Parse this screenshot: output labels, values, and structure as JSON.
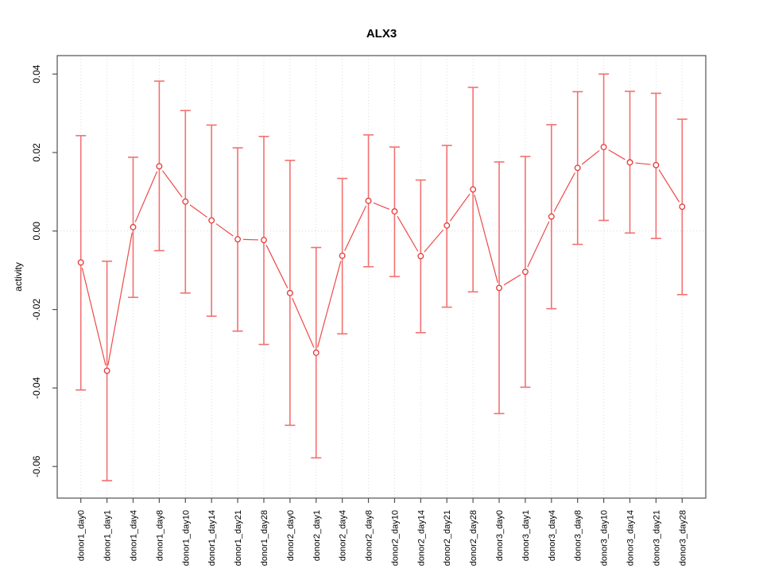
{
  "chart_data": {
    "type": "line",
    "title": "ALX3",
    "xlabel": "",
    "ylabel": "activity",
    "legend": "none",
    "grid": "dotted vertical gridline at every category; dotted horizontal line at y=0",
    "ylim": [
      -0.068,
      0.0447
    ],
    "yticks": [
      0.04,
      0.02,
      0.0,
      -0.02,
      -0.04,
      -0.06
    ],
    "ytick_labels": [
      "0.04",
      "0.02",
      "0.00",
      "-0.02",
      "-0.04",
      "-0.06"
    ],
    "categories": [
      "donor1_day0",
      "donor1_day1",
      "donor1_day4",
      "donor1_day8",
      "donor1_day10",
      "donor1_day14",
      "donor1_day21",
      "donor1_day28",
      "donor2_day0",
      "donor2_day1",
      "donor2_day4",
      "donor2_day8",
      "donor2_day10",
      "donor2_day14",
      "donor2_day21",
      "donor2_day28",
      "donor3_day0",
      "donor3_day1",
      "donor3_day4",
      "donor3_day8",
      "donor3_day10",
      "donor3_day14",
      "donor3_day21",
      "donor3_day28"
    ],
    "series": [
      {
        "name": "activity",
        "marker": "open-circle",
        "values": [
          -0.008,
          -0.0356,
          0.001,
          0.0165,
          0.0075,
          0.0027,
          -0.0021,
          -0.0023,
          -0.0158,
          -0.031,
          -0.0063,
          0.0077,
          0.005,
          -0.0064,
          0.0014,
          0.0106,
          -0.0145,
          -0.0104,
          0.0037,
          0.0161,
          0.0214,
          0.0175,
          0.0168,
          0.0062
        ],
        "error_upper": [
          0.0243,
          -0.0077,
          0.0188,
          0.0382,
          0.0307,
          0.027,
          0.0212,
          0.0241,
          0.018,
          -0.0042,
          0.0134,
          0.0245,
          0.0214,
          0.013,
          0.0218,
          0.0366,
          0.0176,
          0.019,
          0.0271,
          0.0355,
          0.04,
          0.0356,
          0.0351,
          0.0285
        ],
        "error_lower": [
          -0.0405,
          -0.0636,
          -0.0169,
          -0.005,
          -0.0158,
          -0.0217,
          -0.0255,
          -0.0289,
          -0.0495,
          -0.0578,
          -0.0262,
          -0.0091,
          -0.0116,
          -0.0259,
          -0.0194,
          -0.0155,
          -0.0465,
          -0.0398,
          -0.0198,
          -0.0034,
          0.0027,
          -0.0005,
          -0.0019,
          -0.0162
        ]
      }
    ],
    "colors": {
      "series_line": "#ed4a49",
      "marker_stroke": "#e53935",
      "error_bar": "#f37070",
      "gridline": "#dcdcdc",
      "zero_line": "#d8d8d8",
      "frame": "#525252",
      "text": "#000000",
      "background": "#ffffff"
    }
  }
}
